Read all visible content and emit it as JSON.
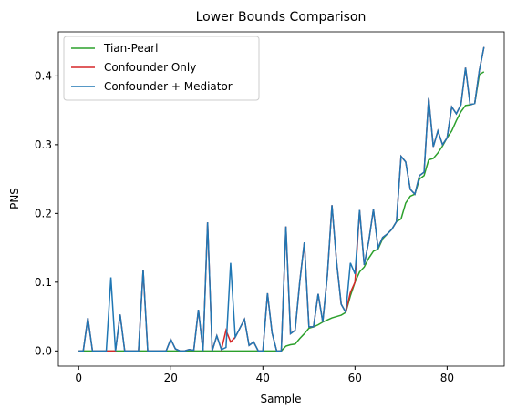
{
  "chart_data": {
    "type": "line",
    "title": "Lower Bounds Comparison",
    "xlabel": "Sample",
    "ylabel": "PNS",
    "x": [
      0,
      1,
      2,
      3,
      4,
      5,
      6,
      7,
      8,
      9,
      10,
      11,
      12,
      13,
      14,
      15,
      16,
      17,
      18,
      19,
      20,
      21,
      22,
      23,
      24,
      25,
      26,
      27,
      28,
      29,
      30,
      31,
      32,
      33,
      34,
      35,
      36,
      37,
      38,
      39,
      40,
      41,
      42,
      43,
      44,
      45,
      46,
      47,
      48,
      49,
      50,
      51,
      52,
      53,
      54,
      55,
      56,
      57,
      58,
      59,
      60,
      61,
      62,
      63,
      64,
      65,
      66,
      67,
      68,
      69,
      70,
      71,
      72,
      73,
      74,
      75,
      76,
      77,
      78,
      79,
      80,
      81,
      82,
      83,
      84,
      85,
      86,
      87,
      88
    ],
    "series": [
      {
        "name": "Tian-Pearl",
        "color": "#2ca02c",
        "values": [
          0,
          0,
          0,
          0,
          0,
          0,
          0,
          0,
          0,
          0,
          0,
          0,
          0,
          0,
          0,
          0,
          0,
          0,
          0,
          0,
          0,
          0,
          0,
          0,
          0,
          0,
          0,
          0,
          0,
          0,
          0,
          0,
          0,
          0,
          0,
          0,
          0,
          0,
          0,
          0,
          0,
          0,
          0,
          0,
          0,
          0.007,
          0.009,
          0.01,
          0.018,
          0.025,
          0.033,
          0.035,
          0.038,
          0.042,
          0.045,
          0.048,
          0.05,
          0.052,
          0.056,
          0.08,
          0.1,
          0.115,
          0.122,
          0.135,
          0.145,
          0.148,
          0.163,
          0.17,
          0.177,
          0.188,
          0.192,
          0.215,
          0.225,
          0.228,
          0.25,
          0.255,
          0.278,
          0.28,
          0.288,
          0.298,
          0.31,
          0.32,
          0.335,
          0.348,
          0.357,
          0.358,
          0.36,
          0.402,
          0.406
        ]
      },
      {
        "name": "Confounder Only",
        "color": "#d62728",
        "values": [
          0,
          0,
          0.048,
          0,
          0,
          0,
          0,
          0,
          0,
          0.053,
          0,
          0,
          0,
          0,
          0.118,
          0,
          0,
          0,
          0,
          0,
          0.017,
          0.003,
          0,
          0,
          0.002,
          0.001,
          0.06,
          0,
          0.187,
          0,
          0.022,
          0.002,
          0.03,
          0.013,
          0.02,
          0.033,
          0.046,
          0.008,
          0.013,
          0,
          0,
          0.084,
          0.026,
          0,
          0,
          0.181,
          0.025,
          0.03,
          0.1,
          0.158,
          0.035,
          0.035,
          0.083,
          0.042,
          0.11,
          0.212,
          0.13,
          0.068,
          0.056,
          0.085,
          0.1,
          0.205,
          0.125,
          0.16,
          0.206,
          0.15,
          0.165,
          0.17,
          0.177,
          0.188,
          0.283,
          0.275,
          0.235,
          0.228,
          0.255,
          0.26,
          0.368,
          0.297,
          0.32,
          0.3,
          0.31,
          0.355,
          0.345,
          0.358,
          0.412,
          0.358,
          0.36,
          0.408,
          0.442
        ]
      },
      {
        "name": "Confounder + Mediator",
        "color": "#1f77b4",
        "values": [
          0,
          0,
          0.048,
          0,
          0,
          0,
          0,
          0.107,
          0,
          0.053,
          0,
          0,
          0,
          0,
          0.118,
          0,
          0,
          0,
          0,
          0,
          0.017,
          0.003,
          0,
          0,
          0.002,
          0.001,
          0.06,
          0,
          0.187,
          0,
          0.022,
          0.002,
          0.005,
          0.128,
          0.02,
          0.033,
          0.046,
          0.008,
          0.013,
          0,
          0,
          0.084,
          0.026,
          0,
          0,
          0.181,
          0.025,
          0.03,
          0.1,
          0.158,
          0.035,
          0.035,
          0.083,
          0.042,
          0.11,
          0.212,
          0.13,
          0.068,
          0.056,
          0.128,
          0.112,
          0.205,
          0.125,
          0.16,
          0.206,
          0.15,
          0.165,
          0.17,
          0.177,
          0.188,
          0.283,
          0.275,
          0.235,
          0.228,
          0.255,
          0.26,
          0.368,
          0.297,
          0.32,
          0.3,
          0.31,
          0.355,
          0.345,
          0.358,
          0.412,
          0.358,
          0.36,
          0.408,
          0.442
        ]
      }
    ],
    "xlim": [
      -4.4,
      92.4
    ],
    "ylim": [
      -0.0221,
      0.4641
    ],
    "xticks": [
      0,
      20,
      40,
      60,
      80
    ],
    "yticks": [
      {
        "value": 0,
        "label": "0.0"
      },
      0.1,
      0.2,
      0.3,
      0.4
    ],
    "legend": "upper left"
  }
}
